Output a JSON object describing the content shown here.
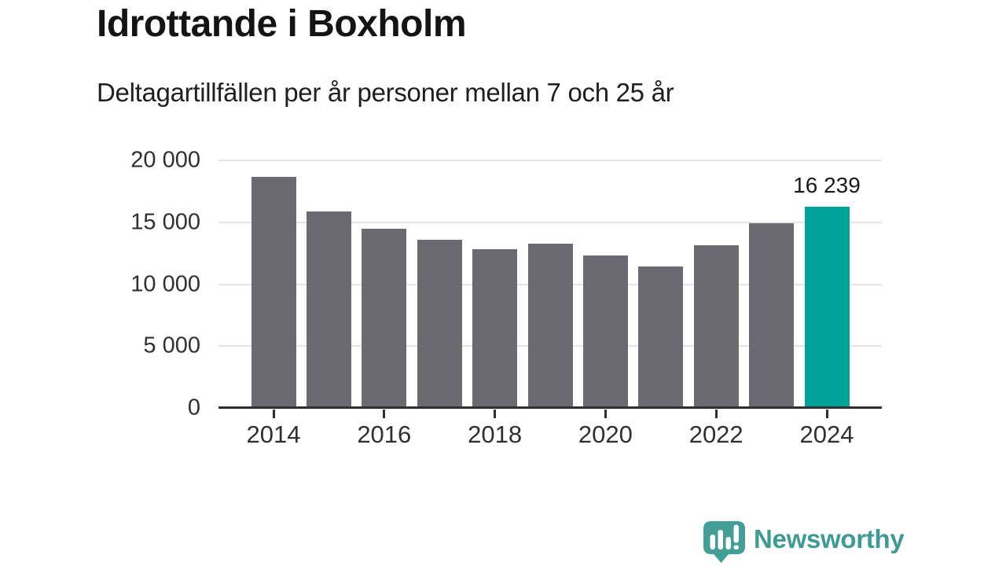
{
  "header": {
    "title": "Idrottande i Boxholm",
    "subtitle": "Deltagartillfällen per år personer mellan 7 och 25 år"
  },
  "chart_data": {
    "type": "bar",
    "title": "Idrottande i Boxholm",
    "subtitle": "Deltagartillfällen per år personer mellan 7 och 25 år",
    "categories": [
      "2014",
      "2015",
      "2016",
      "2017",
      "2018",
      "2019",
      "2020",
      "2021",
      "2022",
      "2023",
      "2024"
    ],
    "values": [
      18650,
      15900,
      14450,
      13600,
      12850,
      13300,
      12300,
      11400,
      13150,
      14950,
      16239
    ],
    "highlight_index": 10,
    "highlight_value_label": "16 239",
    "xlabel": "",
    "ylabel": "",
    "ylim": [
      0,
      20000
    ],
    "yticks": [
      0,
      5000,
      10000,
      15000,
      20000
    ],
    "ytick_labels": [
      "0",
      "5 000",
      "10 000",
      "15 000",
      "20 000"
    ],
    "xtick_indices": [
      0,
      2,
      4,
      6,
      8,
      10
    ],
    "xtick_labels": [
      "2014",
      "2016",
      "2018",
      "2020",
      "2022",
      "2024"
    ],
    "grid": true,
    "legend_position": "none",
    "bar_color": "#6b6a70",
    "highlight_color": "#00a398",
    "gridline_color": "#e5e5e5",
    "axis_color": "#2f2f2f"
  },
  "footer": {
    "brand": "Newsworthy",
    "brand_color": "#3d9b94"
  }
}
